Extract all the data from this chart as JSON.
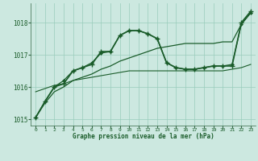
{
  "title": "Graphe pression niveau de la mer (hPa)",
  "xlim": [
    -0.5,
    23.5
  ],
  "ylim": [
    1014.8,
    1018.6
  ],
  "yticks": [
    1015,
    1016,
    1017,
    1018
  ],
  "xticks": [
    0,
    1,
    2,
    3,
    4,
    5,
    6,
    7,
    8,
    9,
    10,
    11,
    12,
    13,
    14,
    15,
    16,
    17,
    18,
    19,
    20,
    21,
    22,
    23
  ],
  "bg_color": "#cce8e0",
  "grid_color": "#99ccbb",
  "line_color_dark": "#1a5c2a",
  "line_color_med": "#2d7a3a",
  "lines": [
    {
      "x": [
        0,
        1,
        2,
        3,
        4,
        5,
        6,
        7,
        8,
        9,
        10,
        11,
        12,
        13,
        14,
        15,
        16,
        17,
        18,
        19,
        20,
        21,
        22,
        23
      ],
      "y": [
        1015.05,
        1015.55,
        1016.0,
        1016.1,
        1016.5,
        1016.6,
        1016.7,
        1017.1,
        1017.1,
        1017.6,
        1017.75,
        1017.75,
        1017.65,
        1017.5,
        1016.75,
        1016.6,
        1016.55,
        1016.55,
        1016.6,
        1016.65,
        1016.65,
        1016.65,
        1018.0,
        1018.35
      ],
      "marker": "+",
      "linewidth": 1.2,
      "markersize": 5,
      "markeredgewidth": 1.0
    },
    {
      "x": [
        0,
        1,
        2,
        3,
        4,
        5,
        6,
        7,
        8,
        9,
        10,
        11,
        12,
        13,
        14,
        15,
        16,
        17,
        18,
        19,
        20,
        21,
        22,
        23
      ],
      "y": [
        1015.05,
        1015.5,
        1015.85,
        1016.0,
        1016.2,
        1016.3,
        1016.4,
        1016.55,
        1016.65,
        1016.8,
        1016.9,
        1017.0,
        1017.1,
        1017.2,
        1017.25,
        1017.3,
        1017.35,
        1017.35,
        1017.35,
        1017.35,
        1017.4,
        1017.4,
        1017.95,
        1018.3
      ],
      "marker": null,
      "linewidth": 0.9,
      "markersize": 0,
      "markeredgewidth": 0.5
    },
    {
      "x": [
        0,
        1,
        2,
        3,
        4,
        5,
        6,
        7,
        8,
        9,
        10,
        11,
        12,
        13,
        14,
        15,
        16,
        17,
        18,
        19,
        20,
        21,
        22,
        23
      ],
      "y": [
        1015.05,
        1015.55,
        1016.0,
        1016.2,
        1016.5,
        1016.6,
        1016.75,
        1017.05,
        1017.1,
        1017.6,
        1017.75,
        1017.75,
        1017.65,
        1017.5,
        1016.75,
        1016.6,
        1016.55,
        1016.55,
        1016.6,
        1016.65,
        1016.65,
        1016.7,
        1017.95,
        1018.3
      ],
      "marker": "D",
      "linewidth": 0.9,
      "markersize": 2.0,
      "markeredgewidth": 0.5
    },
    {
      "x": [
        0,
        1,
        2,
        3,
        4,
        5,
        6,
        7,
        8,
        9,
        10,
        11,
        12,
        13,
        14,
        15,
        16,
        17,
        18,
        19,
        20,
        21,
        22,
        23
      ],
      "y": [
        1015.85,
        1015.95,
        1016.05,
        1016.1,
        1016.2,
        1016.25,
        1016.3,
        1016.35,
        1016.4,
        1016.45,
        1016.5,
        1016.5,
        1016.5,
        1016.5,
        1016.5,
        1016.5,
        1016.5,
        1016.5,
        1016.5,
        1016.5,
        1016.5,
        1016.55,
        1016.6,
        1016.7
      ],
      "marker": null,
      "linewidth": 0.8,
      "markersize": 0,
      "markeredgewidth": 0.5
    }
  ]
}
